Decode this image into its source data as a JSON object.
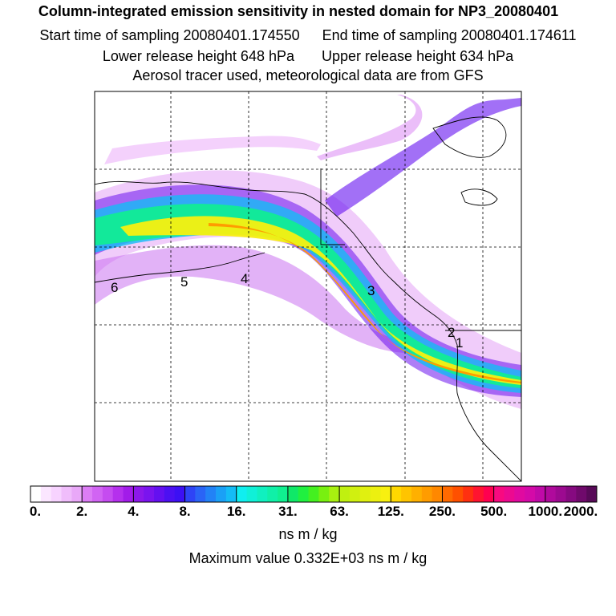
{
  "title": "Column-integrated emission sensitivity in nested domain for NP3_20080401",
  "start_label": "Start time of sampling 20080401.174550",
  "end_label": "End time of sampling 20080401.174611",
  "lower_label": "Lower release height  648 hPa",
  "upper_label": "Upper release height  634 hPa",
  "subtitle": "Aerosol tracer used, meteorological data are from GFS",
  "map": {
    "trajectory_labels": [
      "1",
      "2",
      "3",
      "4",
      "5",
      "6"
    ],
    "colors": {
      "coast": "#000000",
      "grid": "#000000"
    }
  },
  "colorbar": {
    "tick_labels": [
      "0.",
      "2.",
      "4.",
      "8.",
      "16.",
      "31.",
      "63.",
      "125.",
      "250.",
      "500.",
      "1000.",
      "2000."
    ],
    "groups": [
      [
        "#ffffff",
        "#fbe6ff",
        "#f7d3ff",
        "#f0bdfb",
        "#e9a8f8"
      ],
      [
        "#dc7df5",
        "#d164f3",
        "#c54cf0",
        "#b530ed",
        "#a21ce9"
      ],
      [
        "#8c18ea",
        "#7a14ee",
        "#6410f0",
        "#4c10f2",
        "#3c10f4"
      ],
      [
        "#2e44f6",
        "#2a64f6",
        "#2282f6",
        "#1aa0f6",
        "#14bcf6"
      ],
      [
        "#10eef0",
        "#10f0d8",
        "#10f0c0",
        "#10f0a8",
        "#10f090"
      ],
      [
        "#10e868",
        "#20f040",
        "#44f020",
        "#78f010",
        "#a8f010"
      ],
      [
        "#c0f010",
        "#d0f010",
        "#e0f010",
        "#ecf010",
        "#f8f010"
      ],
      [
        "#ffd800",
        "#ffc400",
        "#ffb000",
        "#ff9c00",
        "#ff8800"
      ],
      [
        "#ff6a00",
        "#ff5000",
        "#ff3010",
        "#ff1430",
        "#ff0050"
      ],
      [
        "#f80a80",
        "#ec0a90",
        "#e00aa0",
        "#d40aa8",
        "#c00aa8"
      ],
      [
        "#b00a9c",
        "#9c0a90",
        "#860a80",
        "#700a6c",
        "#580a58"
      ]
    ]
  },
  "units": "ns m / kg",
  "max_value": "Maximum value  0.332E+03 ns m / kg"
}
